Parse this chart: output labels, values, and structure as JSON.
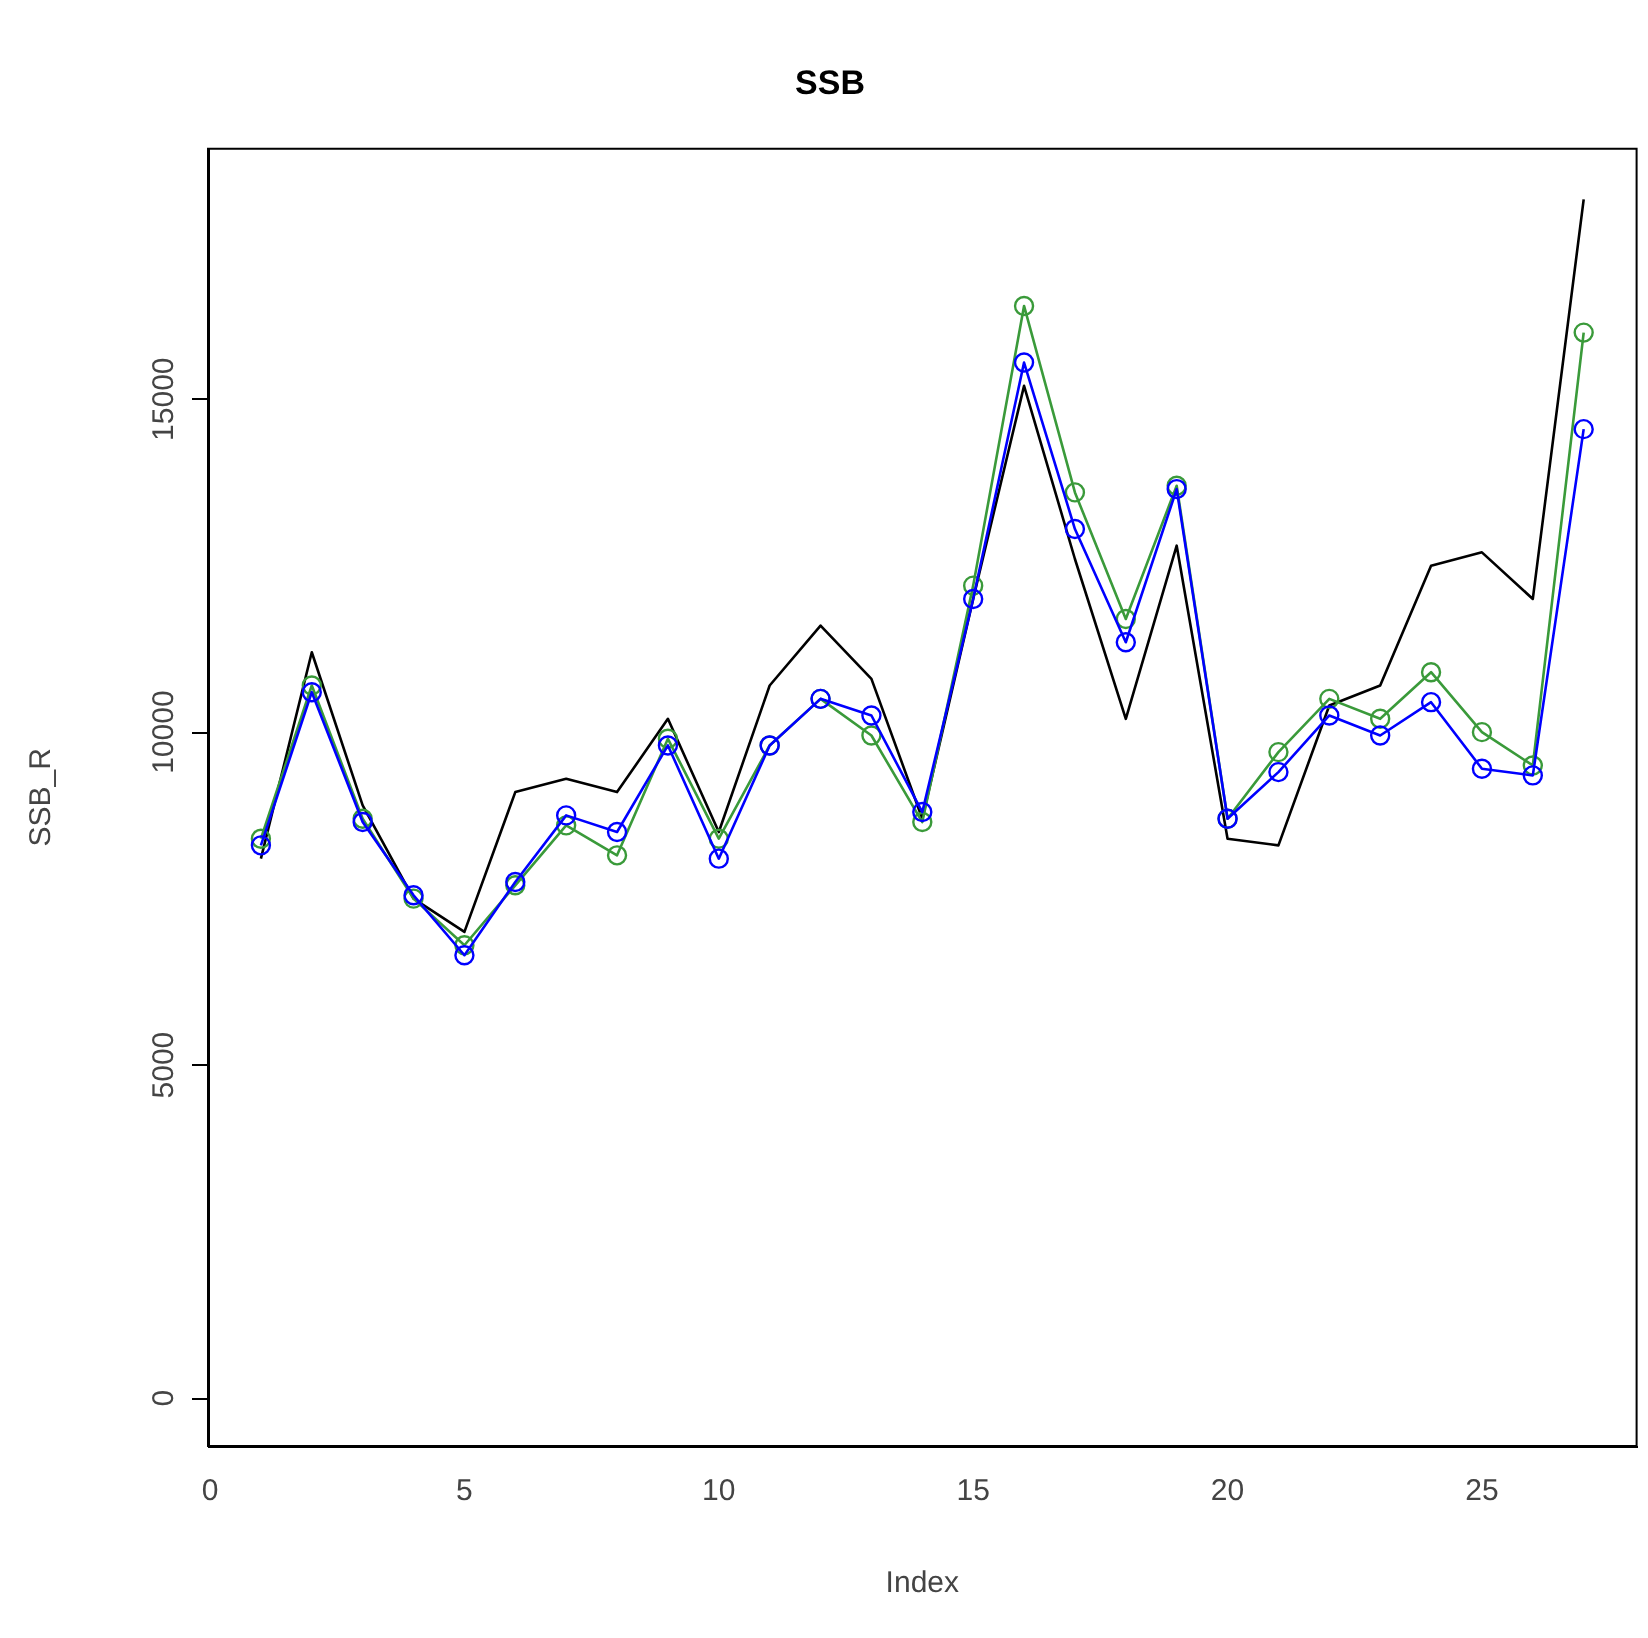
{
  "chart_data": {
    "type": "line",
    "title": "SSB",
    "xlabel": "Index",
    "ylabel": "SSB_R",
    "x": [
      1,
      2,
      3,
      4,
      5,
      6,
      7,
      8,
      9,
      10,
      11,
      12,
      13,
      14,
      15,
      16,
      17,
      18,
      19,
      20,
      21,
      22,
      23,
      24,
      25,
      26,
      27
    ],
    "xlim": [
      -0.04,
      28.04
    ],
    "xticks": [
      0,
      5,
      10,
      15,
      20,
      25
    ],
    "ylim": [
      -720,
      18760
    ],
    "yticks": [
      0,
      5000,
      10000,
      15000
    ],
    "series": [
      {
        "color": "#000000",
        "marker": "none",
        "values": [
          8100,
          11200,
          8900,
          7500,
          7000,
          9100,
          9300,
          9100,
          10200,
          8500,
          10700,
          11600,
          10800,
          8700,
          12000,
          15200,
          12600,
          10200,
          12800,
          8400,
          8300,
          10400,
          10700,
          12500,
          12700,
          12000,
          18000
        ]
      },
      {
        "color": "#3a9a3a",
        "marker": "circle",
        "values": [
          8400,
          10700,
          8700,
          7500,
          6800,
          7700,
          8600,
          8150,
          9900,
          8400,
          9800,
          10500,
          9950,
          8650,
          12200,
          16400,
          13600,
          11700,
          13700,
          8700,
          9700,
          10500,
          10200,
          10900,
          10000,
          9500,
          16000
        ]
      },
      {
        "color": "#0000ff",
        "marker": "circle",
        "values": [
          8300,
          10600,
          8650,
          7550,
          6650,
          7750,
          8750,
          8500,
          9800,
          8100,
          9800,
          10500,
          10250,
          8800,
          12000,
          15550,
          13050,
          11350,
          13650,
          8700,
          9400,
          10250,
          9950,
          10450,
          9450,
          9350,
          14550
        ]
      }
    ]
  }
}
